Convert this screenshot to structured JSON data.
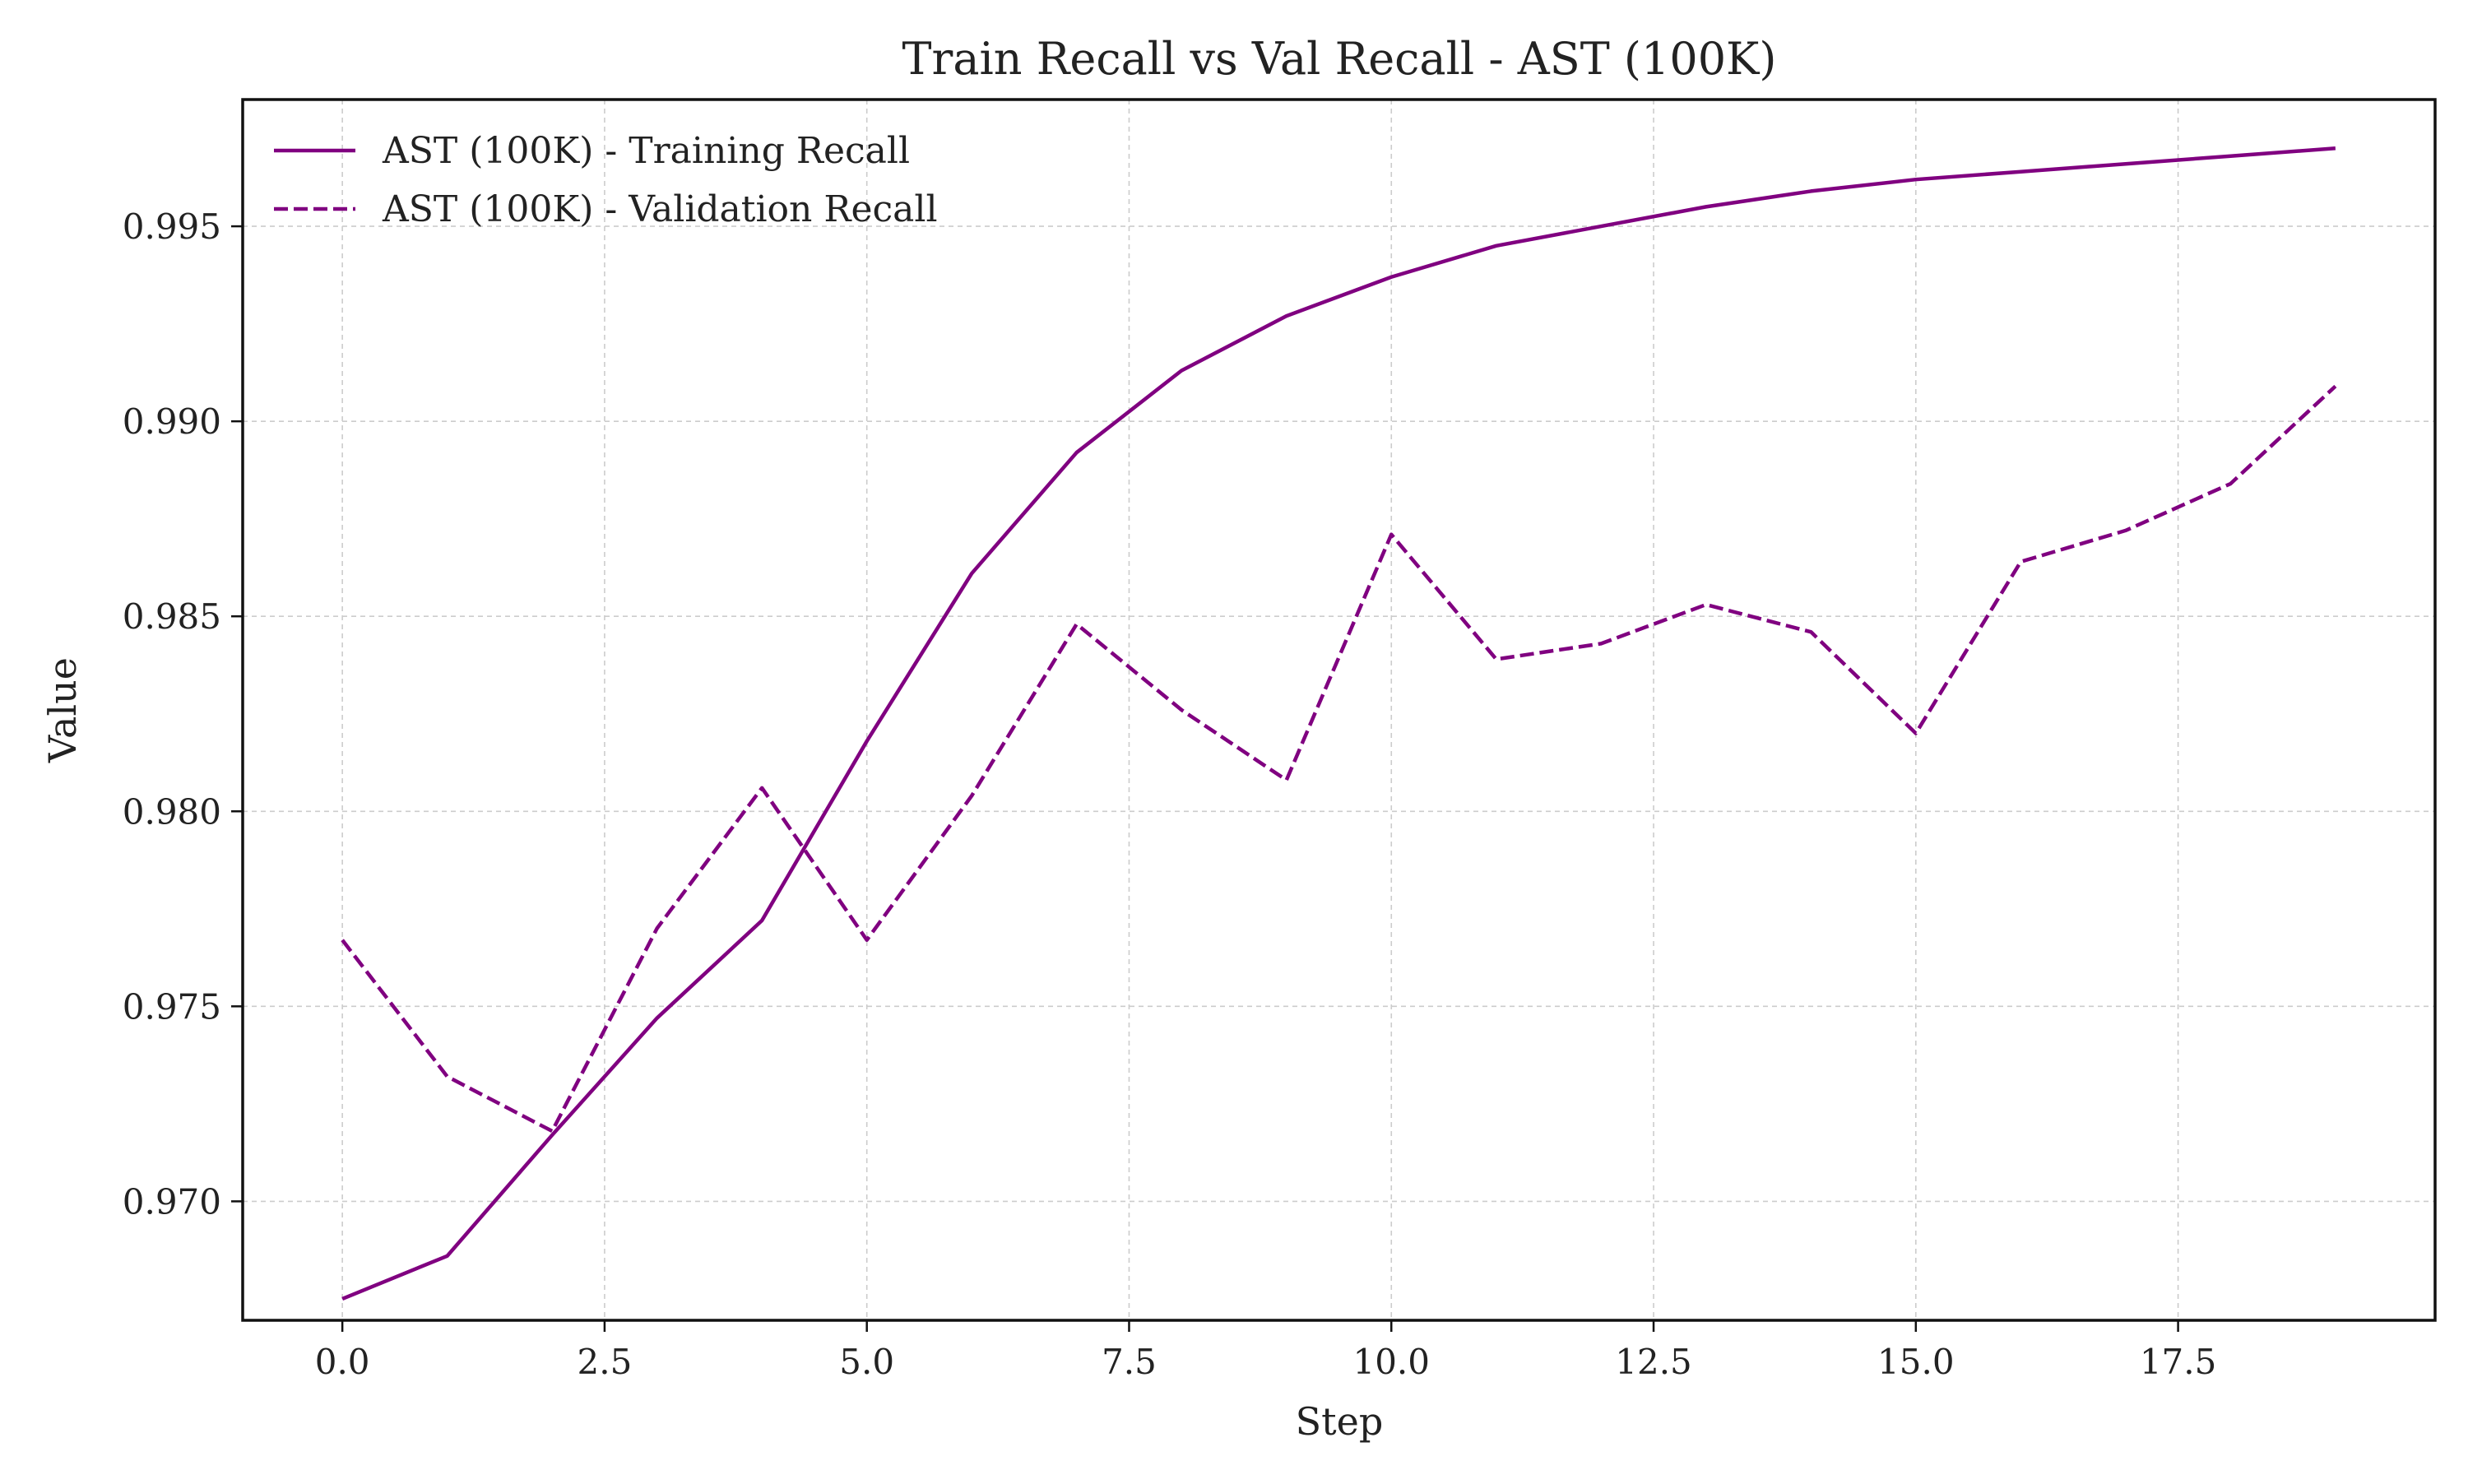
{
  "chart_data": {
    "type": "line",
    "title": "Train Recall vs Val Recall - AST (100K)",
    "xlabel": "Step",
    "ylabel": "Value",
    "xlim": [
      -0.95,
      19.95
    ],
    "ylim": [
      0.96695,
      0.99825
    ],
    "x_ticks": [
      0,
      2.5,
      5,
      7.5,
      10,
      12.5,
      15,
      17.5
    ],
    "x_tick_labels": [
      "0.0",
      "2.5",
      "5.0",
      "7.5",
      "10.0",
      "12.5",
      "15.0",
      "17.5"
    ],
    "y_ticks": [
      0.97,
      0.975,
      0.98,
      0.985,
      0.99,
      0.995
    ],
    "y_tick_labels": [
      "0.970",
      "0.975",
      "0.980",
      "0.985",
      "0.990",
      "0.995"
    ],
    "grid": true,
    "legend_position": "upper-left",
    "x": [
      0,
      1,
      2,
      3,
      4,
      5,
      6,
      7,
      8,
      9,
      10,
      11,
      12,
      13,
      14,
      15,
      16,
      17,
      18,
      19
    ],
    "series": [
      {
        "name": "AST (100K) - Training Recall",
        "color": "#800080",
        "style": "solid",
        "values": [
          0.9675,
          0.9686,
          0.9717,
          0.9747,
          0.9772,
          0.9818,
          0.9861,
          0.9892,
          0.9913,
          0.9927,
          0.9937,
          0.9945,
          0.995,
          0.9955,
          0.9959,
          0.9962,
          0.9964,
          0.9966,
          0.9968,
          0.997
        ]
      },
      {
        "name": "AST (100K) - Validation Recall",
        "color": "#800080",
        "style": "dashed",
        "values": [
          0.9767,
          0.9732,
          0.9718,
          0.977,
          0.9806,
          0.9767,
          0.9804,
          0.9848,
          0.9826,
          0.9808,
          0.9871,
          0.9839,
          0.9843,
          0.9853,
          0.9846,
          0.982,
          0.9864,
          0.9872,
          0.9884,
          0.9909
        ]
      }
    ]
  }
}
